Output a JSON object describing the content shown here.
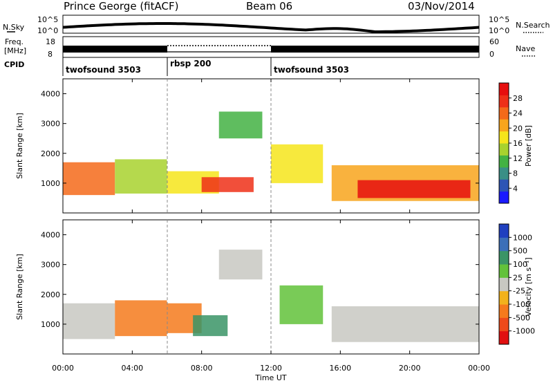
{
  "header": {
    "station": "Prince George (fitACF)",
    "beam": "Beam 06",
    "date": "03/Nov/2014"
  },
  "noise_panel": {
    "left_label": "N.Sky",
    "right_label": "N.Search",
    "left_ticks": [
      "10^5",
      "10^0"
    ],
    "right_ticks": [
      "10^5",
      "10^0"
    ]
  },
  "freq_panel": {
    "left_label_1": "Freq.",
    "left_label_2": "[MHz]",
    "left_ticks": [
      "18",
      "8"
    ],
    "right_label": "Nave",
    "right_ticks": [
      "60",
      "0"
    ]
  },
  "cpid_panel": {
    "label": "CPID",
    "segments": [
      {
        "name": "twofsound 3503",
        "start": 0,
        "end": 6
      },
      {
        "name": "rbsp 200",
        "start": 6,
        "end": 12
      },
      {
        "name": "twofsound 3503",
        "start": 12,
        "end": 24
      }
    ]
  },
  "x_axis": {
    "label": "Time UT",
    "ticks": [
      "00:00",
      "04:00",
      "08:00",
      "12:00",
      "16:00",
      "20:00",
      "00:00"
    ]
  },
  "power_panel": {
    "ylabel": "Slant Range [km]",
    "yticks": [
      "1000",
      "2000",
      "3000",
      "4000"
    ],
    "cbar_label": "Power [dB]",
    "cbar_ticks": [
      "4",
      "8",
      "12",
      "16",
      "20",
      "24",
      "28"
    ],
    "cbar_colors": [
      "#1a1aff",
      "#2d55b5",
      "#3a8f86",
      "#43b243",
      "#a8d22e",
      "#f6e51b",
      "#f8a51c",
      "#f46a1a",
      "#ee3018",
      "#e60e0e"
    ]
  },
  "velocity_panel": {
    "ylabel": "Slant Range [km]",
    "yticks": [
      "1000",
      "2000",
      "3000",
      "4000"
    ],
    "cbar_label": "Velocity [m s⁻¹]",
    "cbar_ticks": [
      "1000",
      "500",
      "100",
      "25",
      "-25",
      "-100",
      "-500",
      "-1000"
    ],
    "cbar_colors": [
      "#2040c0",
      "#3c6fb8",
      "#3a9466",
      "#62c23a",
      "#c8c8c2",
      "#f2b21c",
      "#f57a1c",
      "#ee4a1a",
      "#e11010"
    ]
  },
  "chart_data": {
    "type": "heatmap",
    "x_range": [
      0,
      24
    ],
    "y_range": [
      0,
      4500
    ],
    "x_unit": "hours UT",
    "y_unit": "km",
    "power_regions": [
      {
        "t": [
          0.0,
          3.0
        ],
        "r": [
          600,
          1700
        ],
        "db": 22
      },
      {
        "t": [
          3.0,
          6.0
        ],
        "r": [
          650,
          1800
        ],
        "db": 14
      },
      {
        "t": [
          6.0,
          9.0
        ],
        "r": [
          650,
          1400
        ],
        "db": 18
      },
      {
        "t": [
          8.0,
          11.0
        ],
        "r": [
          700,
          1200
        ],
        "db": 26
      },
      {
        "t": [
          9.0,
          11.5
        ],
        "r": [
          2500,
          3400
        ],
        "db": 10
      },
      {
        "t": [
          12.0,
          15.0
        ],
        "r": [
          1000,
          2300
        ],
        "db": 18
      },
      {
        "t": [
          15.5,
          24.0
        ],
        "r": [
          400,
          1600
        ],
        "db": 20
      },
      {
        "t": [
          17.0,
          23.5
        ],
        "r": [
          500,
          1100
        ],
        "db": 30
      }
    ],
    "velocity_regions": [
      {
        "t": [
          0.0,
          3.0
        ],
        "r": [
          500,
          1700
        ],
        "v": 0
      },
      {
        "t": [
          3.0,
          6.0
        ],
        "r": [
          600,
          1800
        ],
        "v": -300
      },
      {
        "t": [
          6.0,
          8.0
        ],
        "r": [
          700,
          1700
        ],
        "v": -200
      },
      {
        "t": [
          7.5,
          9.5
        ],
        "r": [
          600,
          1300
        ],
        "v": 150
      },
      {
        "t": [
          9.0,
          11.5
        ],
        "r": [
          2500,
          3500
        ],
        "v": 0
      },
      {
        "t": [
          12.5,
          15.0
        ],
        "r": [
          1000,
          2300
        ],
        "v": 50
      },
      {
        "t": [
          15.5,
          24.0
        ],
        "r": [
          400,
          1600
        ],
        "v": 0
      }
    ]
  }
}
